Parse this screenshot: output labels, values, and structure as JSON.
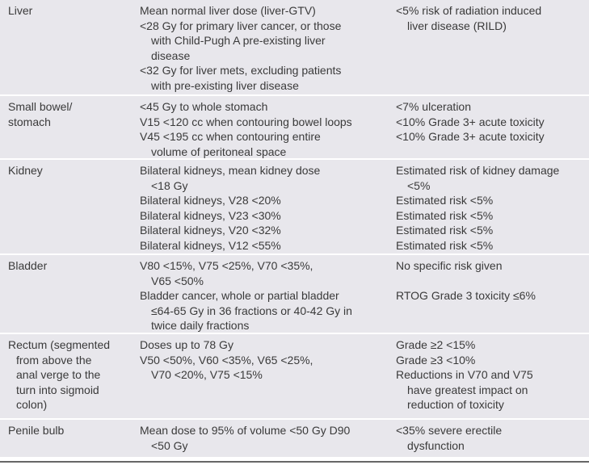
{
  "table": {
    "rows": [
      {
        "organ": [
          "Liver"
        ],
        "constraint": [
          {
            "t": "Mean normal liver dose (liver-GTV)",
            "i": 0
          },
          {
            "t": "<28 Gy for primary liver cancer, or those",
            "i": 0
          },
          {
            "t": "with Child-Pugh A pre-existing liver",
            "i": 1
          },
          {
            "t": "disease",
            "i": 1
          },
          {
            "t": "<32 Gy for liver mets, excluding patients",
            "i": 0
          },
          {
            "t": "with pre-existing liver disease",
            "i": 1
          }
        ],
        "outcome": [
          {
            "t": "<5% risk of radiation induced",
            "i": 0
          },
          {
            "t": "liver disease (RILD)",
            "i": 1
          }
        ]
      },
      {
        "organ": [
          "Small bowel/",
          "stomach"
        ],
        "constraint": [
          {
            "t": "<45 Gy to whole stomach",
            "i": 0
          },
          {
            "t": "V15 <120 cc when contouring bowel loops",
            "i": 0
          },
          {
            "t": "V45 <195 cc when contouring entire",
            "i": 0
          },
          {
            "t": "volume of peritoneal space",
            "i": 1
          }
        ],
        "outcome": [
          {
            "t": "<7% ulceration",
            "i": 0
          },
          {
            "t": "<10% Grade 3+ acute toxicity",
            "i": 0
          },
          {
            "t": "<10% Grade 3+ acute toxicity",
            "i": 0
          }
        ]
      },
      {
        "organ": [
          "Kidney"
        ],
        "constraint": [
          {
            "t": "Bilateral kidneys, mean kidney dose",
            "i": 0
          },
          {
            "t": "<18 Gy",
            "i": 1
          },
          {
            "t": "Bilateral kidneys, V28 <20%",
            "i": 0
          },
          {
            "t": "Bilateral kidneys, V23 <30%",
            "i": 0
          },
          {
            "t": "Bilateral kidneys, V20 <32%",
            "i": 0
          },
          {
            "t": "Bilateral kidneys, V12 <55%",
            "i": 0
          }
        ],
        "outcome": [
          {
            "t": "Estimated risk of kidney damage",
            "i": 0
          },
          {
            "t": "<5%",
            "i": 1
          },
          {
            "t": "Estimated risk <5%",
            "i": 0
          },
          {
            "t": "Estimated risk <5%",
            "i": 0
          },
          {
            "t": "Estimated risk <5%",
            "i": 0
          },
          {
            "t": "Estimated risk <5%",
            "i": 0
          }
        ]
      },
      {
        "organ": [
          "Bladder"
        ],
        "constraint": [
          {
            "t": "V80 <15%, V75 <25%, V70 <35%,",
            "i": 0
          },
          {
            "t": "V65 <50%",
            "i": 1
          },
          {
            "t": "Bladder cancer, whole or partial bladder",
            "i": 0
          },
          {
            "t": "≤64-65 Gy in 36 fractions or 40-42 Gy in",
            "i": 1
          },
          {
            "t": "twice daily fractions",
            "i": 1
          }
        ],
        "outcome": [
          {
            "t": "No specific risk given",
            "i": 0
          },
          {
            "t": "",
            "i": 0
          },
          {
            "t": "RTOG Grade 3 toxicity ≤6%",
            "i": 0
          }
        ]
      },
      {
        "organ": [
          "Rectum (segmented",
          "from above the",
          "anal verge to the",
          "turn into sigmoid",
          "colon)"
        ],
        "organ_indent": [
          0,
          1,
          1,
          1,
          1
        ],
        "constraint": [
          {
            "t": "Doses up to 78 Gy",
            "i": 0
          },
          {
            "t": "V50 <50%, V60 <35%, V65 <25%,",
            "i": 0
          },
          {
            "t": "V70 <20%, V75 <15%",
            "i": 1
          }
        ],
        "outcome": [
          {
            "t": "Grade ≥2 <15%",
            "i": 0
          },
          {
            "t": "Grade ≥3 <10%",
            "i": 0
          },
          {
            "t": "Reductions in V70 and V75",
            "i": 0
          },
          {
            "t": "have greatest impact on",
            "i": 1
          },
          {
            "t": "reduction of toxicity",
            "i": 1
          }
        ]
      },
      {
        "organ": [
          "Penile bulb"
        ],
        "constraint": [
          {
            "t": "Mean dose to 95% of volume <50 Gy D90",
            "i": 0
          },
          {
            "t": "<50 Gy",
            "i": 1
          }
        ],
        "outcome": [
          {
            "t": "<35% severe erectile",
            "i": 0
          },
          {
            "t": "dysfunction",
            "i": 1
          }
        ]
      }
    ]
  }
}
